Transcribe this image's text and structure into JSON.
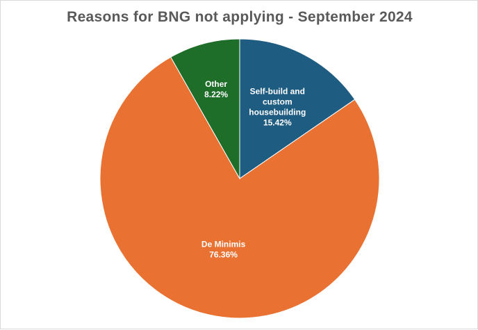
{
  "chart_data": {
    "type": "pie",
    "title": "Reasons for BNG not applying - September 2024",
    "slices": [
      {
        "label_lines": [
          "Self-build and",
          "custom",
          "housebuilding"
        ],
        "value": 15.42,
        "value_label": "15.42%",
        "color": "#1F5C82"
      },
      {
        "label_lines": [
          "De Minimis"
        ],
        "value": 76.36,
        "value_label": "76.36%",
        "color": "#E97132"
      },
      {
        "label_lines": [
          "Other"
        ],
        "value": 8.22,
        "value_label": "8.22%",
        "color": "#1E6E2A"
      }
    ]
  }
}
